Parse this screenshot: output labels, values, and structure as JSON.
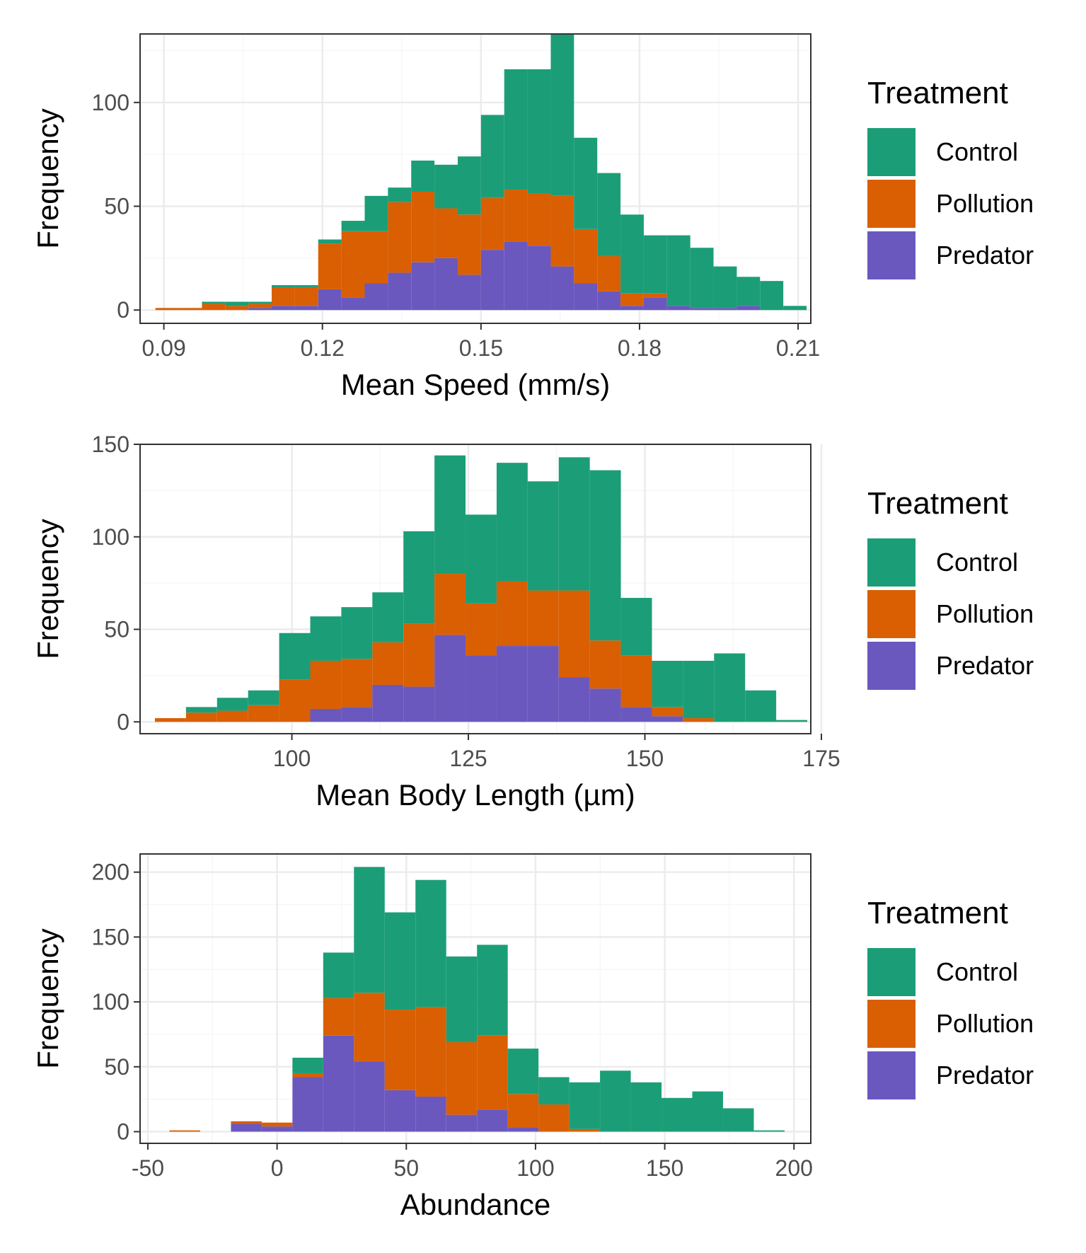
{
  "colors": {
    "control": "#1b9e77",
    "pollution": "#d95f02",
    "predator": "#6a58bf",
    "grid_major": "#ebebeb",
    "grid_minor": "#f5f5f5",
    "panel_border": "#333333",
    "axis_text": "#4d4d4d"
  },
  "chart_data": [
    {
      "type": "bar",
      "stacked": true,
      "chart_kind": "histogram",
      "xlabel": "Mean Speed (mm/s)",
      "ylabel": "Frequency",
      "xlim": [
        0.0855,
        0.2124
      ],
      "ylim": [
        -6.4,
        133
      ],
      "x_ticks": [
        0.09,
        0.12,
        0.15,
        0.18,
        0.21
      ],
      "x_tick_labels": [
        "0.09",
        "0.12",
        "0.15",
        "0.18",
        "0.21"
      ],
      "y_ticks": [
        0,
        50,
        100
      ],
      "y_tick_labels": [
        "0",
        "50",
        "100"
      ],
      "bin_width": 0.0044,
      "bin_centers": [
        0.0906,
        0.095,
        0.0994,
        0.1038,
        0.1082,
        0.1126,
        0.117,
        0.1214,
        0.1258,
        0.1302,
        0.1346,
        0.139,
        0.1434,
        0.1478,
        0.1522,
        0.1566,
        0.161,
        0.1654,
        0.1698,
        0.1742,
        0.1786,
        0.183,
        0.1874,
        0.1918,
        0.1962,
        0.2006,
        0.205,
        0.2094
      ],
      "series": [
        {
          "name": "Predator",
          "values": [
            0,
            0,
            0,
            0,
            1,
            2,
            2,
            10,
            6,
            13,
            18,
            23,
            25,
            17,
            29,
            33,
            31,
            21,
            13,
            9,
            2,
            6,
            2,
            1,
            1,
            2,
            0,
            0
          ]
        },
        {
          "name": "Pollution",
          "values": [
            1,
            1,
            3,
            2,
            2,
            9,
            9,
            22,
            32,
            25,
            34,
            34,
            24,
            29,
            25,
            25,
            25,
            34,
            26,
            17,
            6,
            2,
            0,
            0,
            0,
            0,
            0,
            0
          ]
        },
        {
          "name": "Control",
          "values": [
            0,
            0,
            1,
            2,
            1,
            1,
            1,
            2,
            5,
            17,
            7,
            15,
            21,
            28,
            40,
            58,
            60,
            78,
            44,
            40,
            38,
            28,
            34,
            29,
            20,
            14,
            14,
            2
          ]
        }
      ],
      "legend": {
        "title": "Treatment",
        "items": [
          "Control",
          "Pollution",
          "Predator"
        ],
        "position": "right"
      }
    },
    {
      "type": "bar",
      "stacked": true,
      "chart_kind": "histogram",
      "xlabel": "Mean Body Length (µm)",
      "ylabel": "Frequency",
      "xlim": [
        78.5,
        173.5
      ],
      "ylim": [
        -6.4,
        150
      ],
      "x_ticks": [
        100,
        125,
        150,
        175
      ],
      "x_tick_labels": [
        "100",
        "125",
        "150",
        "175"
      ],
      "y_ticks": [
        0,
        50,
        100,
        150
      ],
      "y_tick_labels": [
        "0",
        "50",
        "100",
        "150"
      ],
      "bin_width": 4.4,
      "bin_centers": [
        82.8,
        87.2,
        91.6,
        96,
        100.4,
        104.8,
        109.2,
        113.6,
        118,
        122.4,
        126.8,
        131.2,
        135.6,
        140,
        144.4,
        148.8,
        153.2,
        157.6,
        162,
        166.4,
        170.8
      ],
      "series": [
        {
          "name": "Predator",
          "values": [
            0,
            0,
            0,
            0,
            0,
            7,
            8,
            20,
            19,
            47,
            36,
            41,
            41,
            24,
            18,
            8,
            3,
            0,
            0,
            0,
            0
          ]
        },
        {
          "name": "Pollution",
          "values": [
            2,
            5,
            6,
            9,
            23,
            26,
            26,
            23,
            34,
            33,
            28,
            35,
            30,
            47,
            26,
            28,
            5,
            2,
            0,
            0,
            0
          ]
        },
        {
          "name": "Control",
          "values": [
            0,
            3,
            7,
            8,
            25,
            24,
            28,
            27,
            50,
            64,
            48,
            64,
            59,
            72,
            92,
            31,
            25,
            31,
            37,
            17,
            1
          ]
        }
      ],
      "legend": {
        "title": "Treatment",
        "items": [
          "Control",
          "Pollution",
          "Predator"
        ],
        "position": "right"
      }
    },
    {
      "type": "bar",
      "stacked": true,
      "chart_kind": "histogram",
      "xlabel": "Abundance",
      "ylabel": "Frequency",
      "xlim": [
        -53,
        206.5
      ],
      "ylim": [
        -9,
        214
      ],
      "x_ticks": [
        -50,
        0,
        50,
        100,
        150,
        200
      ],
      "x_tick_labels": [
        "-50",
        "0",
        "50",
        "100",
        "150",
        "200"
      ],
      "y_ticks": [
        0,
        50,
        100,
        150,
        200
      ],
      "y_tick_labels": [
        "0",
        "50",
        "100",
        "150",
        "200"
      ],
      "bin_width": 11.9,
      "bin_centers": [
        -35.7,
        -23.8,
        -11.9,
        0,
        11.9,
        23.8,
        35.7,
        47.6,
        59.5,
        71.4,
        83.3,
        95.2,
        107.1,
        119,
        130.9,
        142.8,
        154.7,
        166.6,
        178.5,
        190.4
      ],
      "series": [
        {
          "name": "Predator",
          "values": [
            0,
            0,
            6,
            4,
            42,
            74,
            54,
            32,
            27,
            13,
            17,
            3,
            0,
            0,
            0,
            0,
            0,
            0,
            0,
            0
          ]
        },
        {
          "name": "Pollution",
          "values": [
            1,
            0,
            2,
            3,
            3,
            29,
            53,
            62,
            69,
            56,
            57,
            26,
            21,
            2,
            0,
            0,
            0,
            0,
            0,
            0
          ]
        },
        {
          "name": "Control",
          "values": [
            0,
            0,
            0,
            0,
            12,
            35,
            97,
            75,
            98,
            66,
            70,
            35,
            21,
            36,
            47,
            38,
            26,
            31,
            18,
            1
          ]
        }
      ],
      "legend": {
        "title": "Treatment",
        "items": [
          "Control",
          "Pollution",
          "Predator"
        ],
        "position": "right"
      }
    }
  ]
}
